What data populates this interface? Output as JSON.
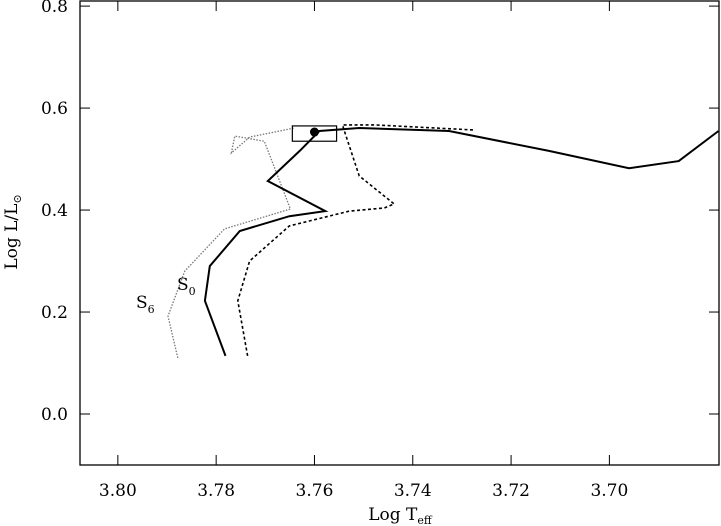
{
  "chart_data": {
    "type": "line",
    "xlabel": [
      "Log  T",
      "eff"
    ],
    "ylabel": [
      "Log  L/L",
      "⊙"
    ],
    "xlim": [
      3.8077,
      3.6777
    ],
    "ylim": [
      -0.1,
      0.81
    ],
    "xticks": [
      {
        "value": 3.8,
        "label": "3.80"
      },
      3.78,
      3.76,
      3.74,
      3.72,
      {
        "value": 3.7,
        "label": "3.70"
      }
    ],
    "yticks": [
      {
        "value": 0,
        "label": "0.0"
      },
      0.2,
      0.4,
      0.6,
      0.8
    ],
    "series": [
      {
        "label": [
          "S",
          "6"
        ],
        "color": "#777777",
        "style": "dotted",
        "x": [
          3.7878,
          3.7898,
          3.7864,
          3.7783,
          3.7649,
          3.7702,
          3.7762,
          3.7769,
          3.7732,
          3.7641
        ],
        "values": [
          0.11,
          0.192,
          0.28,
          0.363,
          0.402,
          0.535,
          0.545,
          0.512,
          0.543,
          0.561
        ]
      },
      {
        "label": [
          "S",
          "0"
        ],
        "color": "#000000",
        "style": "solid",
        "x": [
          3.7781,
          3.7823,
          3.7813,
          3.7752,
          3.7651,
          3.7578,
          3.7695,
          3.763,
          3.759,
          3.7509,
          3.7326,
          3.7123,
          3.696,
          3.6859,
          3.6778
        ],
        "values": [
          0.114,
          0.222,
          0.29,
          0.359,
          0.388,
          0.398,
          0.457,
          0.516,
          0.555,
          0.561,
          0.555,
          0.516,
          0.482,
          0.496,
          0.555
        ]
      },
      {
        "color": "#000000",
        "style": "dashed",
        "x": [
          3.7736,
          3.7756,
          3.7732,
          3.7651,
          3.7529,
          3.7458,
          3.7438,
          3.7509,
          3.7539,
          3.7543,
          3.7478,
          3.7275
        ],
        "values": [
          0.114,
          0.222,
          0.3,
          0.369,
          0.398,
          0.404,
          0.412,
          0.467,
          0.555,
          0.567,
          0.567,
          0.557
        ]
      }
    ],
    "highlight_box": {
      "x": [
        3.7645,
        3.7555
      ],
      "y": [
        0.535,
        0.565
      ]
    },
    "marker": {
      "x": 3.76,
      "y": 0.553
    }
  }
}
